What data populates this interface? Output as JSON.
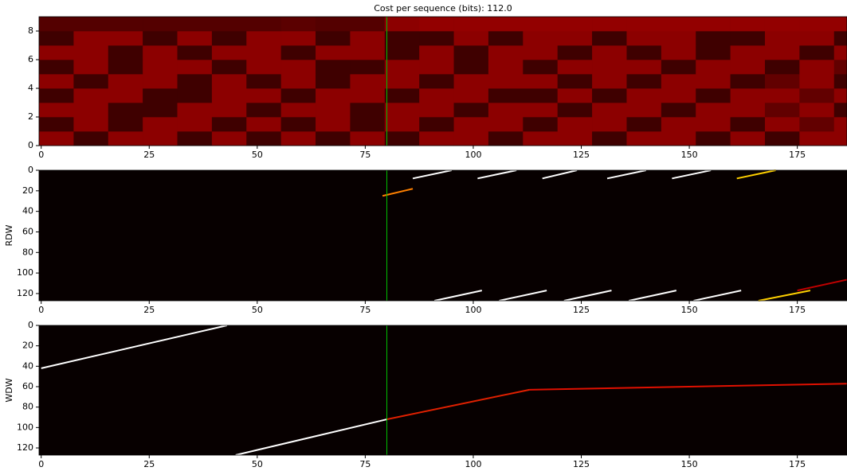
{
  "chart_data": [
    {
      "type": "heatmap",
      "title": "Cost per sequence (bits): 112.0",
      "colormap": "hot",
      "xlim": [
        -0.5,
        186.5
      ],
      "ylim": [
        0,
        9
      ],
      "xticks": [
        0,
        25,
        50,
        75,
        100,
        125,
        150,
        175
      ],
      "yticks": [
        0,
        2,
        4,
        6,
        8
      ],
      "xbins": [
        -0.5,
        7.5,
        15.5,
        23.5,
        31.5,
        39.5,
        47.5,
        55.5,
        63.5,
        71.5,
        79.5,
        87.5,
        95.5,
        103.5,
        111.5,
        119.5,
        127.5,
        135.5,
        143.5,
        151.5,
        159.5,
        167.5,
        175.5,
        183.5,
        186.5
      ],
      "ybins": [
        0,
        1,
        2,
        3,
        4,
        5,
        6,
        7,
        8,
        9
      ],
      "values": [
        [
          0.2,
          0.09,
          0.2,
          0.2,
          0.09,
          0.2,
          0.09,
          0.2,
          0.09,
          0.2,
          0.09,
          0.2,
          0.2,
          0.09,
          0.2,
          0.2,
          0.09,
          0.2,
          0.2,
          0.09,
          0.2,
          0.09,
          0.2,
          0.2
        ],
        [
          0.09,
          0.2,
          0.09,
          0.2,
          0.2,
          0.09,
          0.2,
          0.09,
          0.2,
          0.09,
          0.2,
          0.09,
          0.2,
          0.2,
          0.09,
          0.2,
          0.2,
          0.09,
          0.2,
          0.2,
          0.09,
          0.2,
          0.14,
          0.2
        ],
        [
          0.2,
          0.2,
          0.09,
          0.09,
          0.2,
          0.2,
          0.09,
          0.2,
          0.2,
          0.09,
          0.2,
          0.2,
          0.09,
          0.2,
          0.2,
          0.09,
          0.2,
          0.2,
          0.09,
          0.2,
          0.2,
          0.14,
          0.2,
          0.09
        ],
        [
          0.09,
          0.2,
          0.2,
          0.09,
          0.09,
          0.2,
          0.2,
          0.09,
          0.2,
          0.2,
          0.09,
          0.2,
          0.2,
          0.09,
          0.09,
          0.2,
          0.09,
          0.2,
          0.2,
          0.09,
          0.2,
          0.2,
          0.14,
          0.2
        ],
        [
          0.2,
          0.09,
          0.2,
          0.2,
          0.09,
          0.2,
          0.09,
          0.2,
          0.09,
          0.2,
          0.2,
          0.09,
          0.2,
          0.2,
          0.2,
          0.09,
          0.2,
          0.09,
          0.2,
          0.2,
          0.09,
          0.14,
          0.2,
          0.09
        ],
        [
          0.09,
          0.2,
          0.09,
          0.2,
          0.2,
          0.09,
          0.2,
          0.2,
          0.09,
          0.09,
          0.2,
          0.2,
          0.09,
          0.2,
          0.09,
          0.2,
          0.2,
          0.2,
          0.09,
          0.2,
          0.2,
          0.09,
          0.2,
          0.14
        ],
        [
          0.2,
          0.2,
          0.09,
          0.2,
          0.09,
          0.2,
          0.2,
          0.09,
          0.2,
          0.2,
          0.09,
          0.2,
          0.09,
          0.2,
          0.2,
          0.09,
          0.2,
          0.09,
          0.2,
          0.09,
          0.2,
          0.2,
          0.09,
          0.2
        ],
        [
          0.09,
          0.2,
          0.2,
          0.09,
          0.2,
          0.09,
          0.2,
          0.2,
          0.09,
          0.2,
          0.09,
          0.09,
          0.2,
          0.09,
          0.2,
          0.2,
          0.09,
          0.2,
          0.2,
          0.09,
          0.09,
          0.2,
          0.2,
          0.09
        ],
        [
          0.12,
          0.12,
          0.12,
          0.12,
          0.12,
          0.12,
          0.12,
          0.13,
          0.12,
          0.12,
          0.2,
          0.21,
          0.21,
          0.21,
          0.21,
          0.21,
          0.21,
          0.21,
          0.21,
          0.21,
          0.21,
          0.21,
          0.21,
          0.21
        ]
      ],
      "marker_x": 80,
      "marker_color": "#00c000"
    },
    {
      "type": "heatmap",
      "ylabel": "RDW",
      "colormap": "hot",
      "xlim": [
        -0.5,
        186.5
      ],
      "ylim": [
        127,
        0
      ],
      "xticks": [
        0,
        25,
        50,
        75,
        100,
        125,
        150,
        175
      ],
      "yticks": [
        0,
        20,
        40,
        60,
        80,
        100,
        120
      ],
      "traces": [
        {
          "x": [
            79,
            86
          ],
          "y": [
            25,
            18
          ],
          "color": "#ff8000"
        },
        {
          "x": [
            86,
            95
          ],
          "y": [
            8,
            0
          ],
          "color": "#ffffff"
        },
        {
          "x": [
            101,
            110
          ],
          "y": [
            8,
            0
          ],
          "color": "#ffffff"
        },
        {
          "x": [
            116,
            124
          ],
          "y": [
            8,
            0
          ],
          "color": "#ffffff"
        },
        {
          "x": [
            131,
            140
          ],
          "y": [
            8,
            0
          ],
          "color": "#ffffff"
        },
        {
          "x": [
            146,
            155
          ],
          "y": [
            8,
            0
          ],
          "color": "#ffffff"
        },
        {
          "x": [
            161,
            170
          ],
          "y": [
            8,
            0
          ],
          "color": "#ffd000"
        },
        {
          "x": [
            91,
            102
          ],
          "y": [
            127,
            117
          ],
          "color": "#ffffff"
        },
        {
          "x": [
            106,
            117
          ],
          "y": [
            127,
            117
          ],
          "color": "#ffffff"
        },
        {
          "x": [
            121,
            132
          ],
          "y": [
            127,
            117
          ],
          "color": "#ffffff"
        },
        {
          "x": [
            136,
            147
          ],
          "y": [
            127,
            117
          ],
          "color": "#ffffff"
        },
        {
          "x": [
            151,
            162
          ],
          "y": [
            127,
            117
          ],
          "color": "#ffffff"
        },
        {
          "x": [
            166,
            178
          ],
          "y": [
            127,
            117
          ],
          "color": "#ffd000"
        },
        {
          "x": [
            175,
            187
          ],
          "y": [
            117,
            106
          ],
          "color": "#c00000"
        }
      ],
      "marker_x": 80,
      "marker_color": "#00c000"
    },
    {
      "type": "heatmap",
      "ylabel": "WDW",
      "colormap": "hot",
      "xlim": [
        -0.5,
        186.5
      ],
      "ylim": [
        127,
        0
      ],
      "xticks": [
        0,
        25,
        50,
        75,
        100,
        125,
        150,
        175
      ],
      "yticks": [
        0,
        20,
        40,
        60,
        80,
        100,
        120
      ],
      "traces": [
        {
          "x": [
            0,
            43
          ],
          "y": [
            42,
            0
          ],
          "color": "#ffffff"
        },
        {
          "x": [
            45,
            80
          ],
          "y": [
            127,
            92
          ],
          "color": "#ffffff"
        },
        {
          "x": [
            80,
            113
          ],
          "y": [
            92,
            63
          ],
          "color": "#e02000"
        },
        {
          "x": [
            113,
            187
          ],
          "y": [
            63,
            57
          ],
          "color": "#e01000"
        }
      ],
      "marker_x": 80,
      "marker_color": "#00c000"
    }
  ]
}
